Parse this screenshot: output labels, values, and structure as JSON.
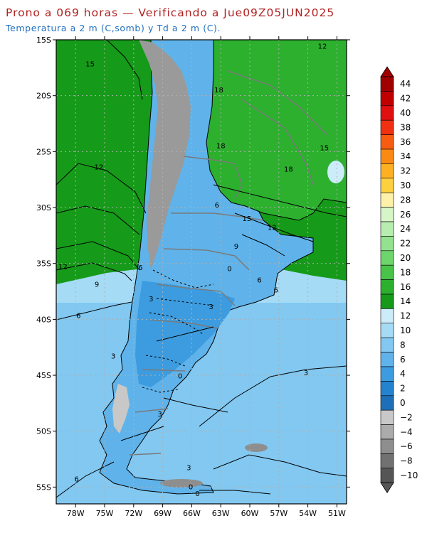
{
  "header": {
    "title": "Prono a 069 horas — Verificando a Jue09Z05JUN2025",
    "subtitle": "Temperatura a 2 m (C,somb) y Td a 2 m (C)."
  },
  "map": {
    "lon_range": [
      -80,
      -50
    ],
    "lat_range": [
      -56.5,
      -15
    ],
    "lat_ticks": [
      "15S",
      "20S",
      "25S",
      "30S",
      "35S",
      "40S",
      "45S",
      "50S",
      "55S"
    ],
    "lat_values": [
      -15,
      -20,
      -25,
      -30,
      -35,
      -40,
      -45,
      -50,
      -55
    ],
    "lon_ticks": [
      "78W",
      "75W",
      "72W",
      "69W",
      "66W",
      "63W",
      "60W",
      "57W",
      "54W",
      "51W"
    ],
    "lon_values": [
      -78,
      -75,
      -72,
      -69,
      -66,
      -63,
      -60,
      -57,
      -54,
      -51
    ],
    "contour_labels": [
      {
        "text": "12",
        "lon": -52.5,
        "lat": -15.6
      },
      {
        "text": "15",
        "lon": -76.5,
        "lat": -17.2
      },
      {
        "text": "18",
        "lon": -63.2,
        "lat": -19.5
      },
      {
        "text": "18",
        "lon": -63.0,
        "lat": -24.5
      },
      {
        "text": "18",
        "lon": -56.0,
        "lat": -26.6
      },
      {
        "text": "15",
        "lon": -52.3,
        "lat": -24.7
      },
      {
        "text": "12",
        "lon": -75.6,
        "lat": -26.4
      },
      {
        "text": "6",
        "lon": -63.4,
        "lat": -29.8
      },
      {
        "text": "15",
        "lon": -60.3,
        "lat": -31.0
      },
      {
        "text": "12",
        "lon": -57.7,
        "lat": -31.8
      },
      {
        "text": "9",
        "lon": -61.4,
        "lat": -33.5
      },
      {
        "text": "12",
        "lon": -79.3,
        "lat": -35.3
      },
      {
        "text": "6",
        "lon": -71.3,
        "lat": -35.4
      },
      {
        "text": "0",
        "lon": -62.1,
        "lat": -35.5
      },
      {
        "text": "9",
        "lon": -75.8,
        "lat": -36.9
      },
      {
        "text": "6",
        "lon": -59.0,
        "lat": -36.5
      },
      {
        "text": "6",
        "lon": -57.3,
        "lat": -37.4
      },
      {
        "text": "3",
        "lon": -70.2,
        "lat": -38.2
      },
      {
        "text": "3",
        "lon": -64.0,
        "lat": -38.9
      },
      {
        "text": "6",
        "lon": -77.7,
        "lat": -39.7
      },
      {
        "text": "3",
        "lon": -74.1,
        "lat": -43.3
      },
      {
        "text": "3",
        "lon": -54.2,
        "lat": -44.8
      },
      {
        "text": "0",
        "lon": -67.2,
        "lat": -45.1
      },
      {
        "text": "3",
        "lon": -69.3,
        "lat": -48.5
      },
      {
        "text": "3",
        "lon": -66.3,
        "lat": -53.3
      },
      {
        "text": "6",
        "lon": -77.9,
        "lat": -54.3
      },
      {
        "text": "0",
        "lon": -66.1,
        "lat": -55.0
      },
      {
        "text": "0",
        "lon": -65.4,
        "lat": -55.6
      }
    ]
  },
  "colorbar": {
    "labels": [
      "44",
      "42",
      "40",
      "38",
      "36",
      "34",
      "32",
      "30",
      "28",
      "26",
      "24",
      "22",
      "20",
      "18",
      "16",
      "14",
      "12",
      "10",
      "8",
      "6",
      "4",
      "2",
      "0",
      "−2",
      "−4",
      "−6",
      "−8",
      "−10"
    ],
    "colors": [
      "#a00000",
      "#c00000",
      "#e01010",
      "#f03010",
      "#f85c10",
      "#fb8a14",
      "#fdb022",
      "#fdd040",
      "#fdf0a8",
      "#d7f6c8",
      "#b7edb0",
      "#94e28f",
      "#6ed56d",
      "#48c449",
      "#2cb02e",
      "#169a19",
      "#ccecfa",
      "#a6dbf6",
      "#82c8f1",
      "#5fb3ea",
      "#3d9cdf",
      "#2483cf",
      "#1d6fb8",
      "#c8c8c8",
      "#ababab",
      "#8e8e8e",
      "#717171",
      "#555555"
    ]
  },
  "palette": {
    "ocean_warm": "#169a19",
    "land_warm": "#2cb02e",
    "ocean_mid": "#a6dbf6",
    "ocean_cool": "#82c8f1",
    "land_cool": "#5fb3ea",
    "land_cold": "#3d9cdf",
    "andes_snow": "#9a9a9a"
  }
}
